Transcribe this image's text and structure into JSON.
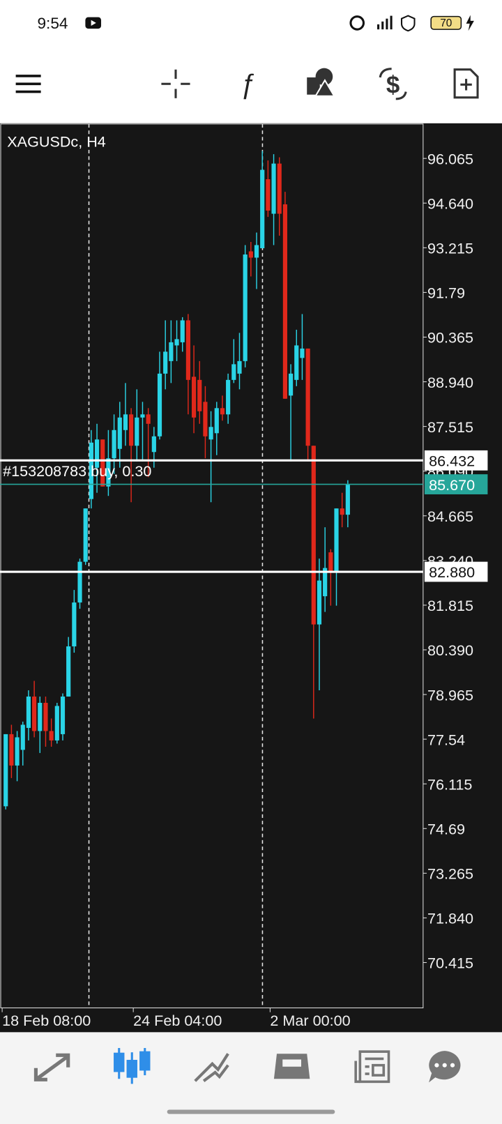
{
  "status_bar": {
    "time": "9:54",
    "battery": "70"
  },
  "chart_data": {
    "type": "candlestick",
    "title": "XAGUSDc, H4",
    "categories": [
      "18 Feb 08:00",
      null,
      null,
      null,
      null,
      null,
      null,
      null,
      null,
      null,
      null,
      null,
      null,
      null,
      null,
      null,
      null,
      null,
      null,
      null,
      null,
      null,
      null,
      "24 Feb 04:00",
      null,
      null,
      null,
      null,
      null,
      null,
      null,
      null,
      null,
      null,
      null,
      null,
      null,
      null,
      null,
      null,
      null,
      null,
      null,
      null,
      null,
      null,
      null,
      "2 Mar 00:00",
      null,
      null,
      null,
      null,
      null,
      null,
      null,
      null,
      null,
      null,
      null,
      null,
      null
    ],
    "open": [
      75.4,
      77.7,
      76.7,
      77.2,
      77.9,
      78.9,
      77.8,
      78.7,
      77.8,
      77.5,
      77.7,
      78.9,
      80.5,
      81.9,
      83.2,
      85.2,
      86.2,
      87.1,
      85.6,
      86.5,
      86.8,
      87.4,
      87.9,
      86.9,
      87.8,
      87.9,
      86.7,
      87.2,
      89.2,
      89.6,
      90.1,
      90.2,
      90.9,
      89.1,
      89.0,
      88.3,
      87.1,
      87.3,
      88.1,
      87.9,
      89.0,
      89.2,
      89.6,
      93.1,
      92.9,
      93.2,
      95.4,
      94.3,
      95.9,
      94.6,
      88.5,
      89.0,
      89.7,
      90.0,
      86.9,
      81.2,
      82.1,
      83.5,
      82.9,
      84.9,
      84.7
    ],
    "high": [
      77.7,
      78.0,
      77.8,
      78.1,
      79.1,
      79.4,
      78.9,
      78.9,
      78.2,
      78.7,
      79.0,
      80.8,
      82.3,
      83.3,
      84.9,
      87.4,
      87.6,
      87.1,
      87.4,
      87.9,
      88.3,
      88.9,
      88.1,
      88.7,
      88.3,
      88.1,
      87.5,
      89.9,
      90.9,
      90.9,
      90.9,
      91.0,
      91.1,
      90.1,
      89.6,
      88.8,
      88.0,
      88.3,
      88.5,
      89.2,
      90.3,
      90.5,
      93.3,
      93.4,
      93.7,
      96.3,
      96.0,
      96.2,
      96.1,
      95.0,
      89.5,
      90.6,
      91.1,
      90.0,
      86.9,
      83.3,
      84.3,
      83.6,
      84.9,
      85.4,
      85.8
    ],
    "low": [
      75.3,
      76.3,
      76.2,
      76.7,
      77.5,
      77.6,
      77.1,
      77.3,
      77.3,
      77.4,
      77.5,
      78.9,
      80.3,
      81.7,
      83.1,
      84.9,
      85.4,
      85.6,
      85.3,
      86.0,
      86.2,
      86.9,
      85.1,
      86.4,
      86.4,
      85.9,
      86.2,
      87.1,
      88.7,
      88.9,
      89.6,
      89.9,
      87.9,
      87.3,
      87.6,
      86.5,
      85.1,
      86.6,
      87.7,
      87.6,
      88.9,
      88.7,
      89.4,
      92.3,
      91.9,
      93.2,
      94.2,
      93.3,
      93.6,
      88.4,
      86.4,
      88.8,
      89.0,
      86.4,
      78.2,
      79.1,
      81.6,
      81.8,
      81.8,
      84.3,
      84.3
    ],
    "close": [
      77.7,
      76.7,
      77.6,
      78.0,
      78.9,
      77.8,
      78.7,
      77.8,
      77.5,
      78.6,
      78.9,
      80.5,
      81.9,
      83.2,
      84.9,
      87.0,
      87.1,
      85.6,
      86.5,
      87.4,
      87.8,
      87.9,
      86.9,
      87.8,
      87.9,
      87.6,
      87.2,
      89.2,
      89.9,
      90.2,
      90.3,
      90.9,
      89.0,
      87.8,
      88.0,
      87.2,
      87.5,
      88.1,
      87.9,
      89.0,
      89.5,
      89.6,
      93.0,
      92.9,
      93.3,
      95.7,
      94.4,
      95.9,
      94.3,
      88.4,
      89.2,
      90.1,
      90.0,
      86.9,
      81.2,
      82.6,
      83.0,
      82.9,
      84.9,
      84.7,
      85.67
    ],
    "up_color": "#2ad4e6",
    "down_color": "#e0281b",
    "ylim": [
      68.97,
      97.185
    ],
    "yticks": [
      96.065,
      {
        "value": 94.64,
        "label": "94.640"
      },
      93.215,
      91.79,
      90.365,
      {
        "value": 88.94,
        "label": "88.940"
      },
      87.515,
      {
        "value": 86.09,
        "label": "86.090"
      },
      84.665,
      {
        "value": 83.24,
        "label": "83.240"
      },
      81.815,
      {
        "value": 80.39,
        "label": "80.390"
      },
      78.965,
      77.54,
      76.115,
      74.69,
      73.265,
      {
        "value": 71.84,
        "label": "71.840"
      },
      70.415
    ],
    "price_lines": [
      {
        "value": 86.432,
        "label": "86.432",
        "color": "#ffffff"
      },
      {
        "value": 82.88,
        "label": "82.880",
        "color": "#ffffff"
      },
      {
        "value": 85.67,
        "label": "85.670",
        "color": "#26a69a"
      }
    ],
    "annotation": "#153208783 buy, 0.30",
    "grid": false
  }
}
